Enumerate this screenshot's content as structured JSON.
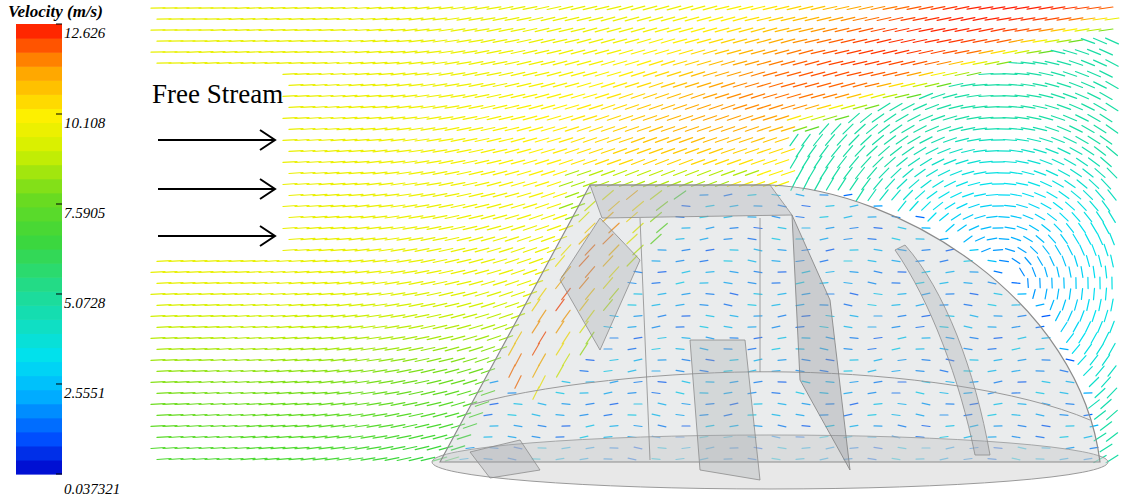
{
  "chart_data": {
    "type": "vector_field",
    "colorbar": {
      "title": "Velocity (m/s)",
      "range": [
        0.037321,
        12.626
      ],
      "ticks": [
        12.626,
        10.108,
        7.5905,
        5.0728,
        2.5551,
        0.037321
      ]
    },
    "annotations": [
      "Free Stream"
    ]
  }
}
